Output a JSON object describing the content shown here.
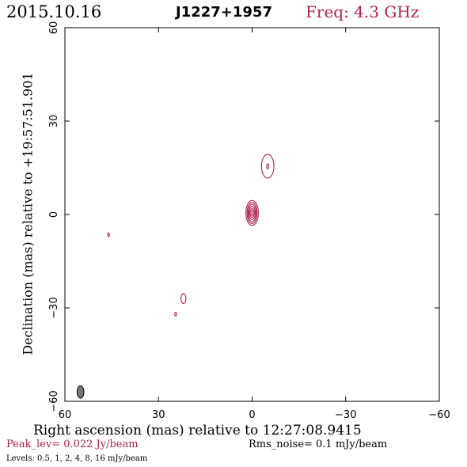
{
  "header": {
    "date": "2015.10.16",
    "source": "J1227+1957",
    "freq": "Freq: 4.3 GHz"
  },
  "colors": {
    "contour": "#b0214b",
    "beam": "#777777",
    "freq_text": "#b0214b"
  },
  "chart_data": {
    "type": "contour",
    "xlabel": "Right ascension (mas) relative to 12:27:08.9415",
    "ylabel": "Declination (mas) relative to +19:57:51.901",
    "xlim": [
      60,
      -60
    ],
    "ylim": [
      -60,
      60
    ],
    "xticks": [
      60,
      30,
      0,
      -30,
      -60
    ],
    "yticks": [
      -60,
      -30,
      0,
      30,
      60
    ],
    "xtick_labels": [
      "60",
      "30",
      "0",
      "−30",
      "−60"
    ],
    "ytick_labels": [
      "−60",
      "−30",
      "0",
      "30",
      "60"
    ],
    "grid": false,
    "peak": "Peak_lev=  0.022 Jy/beam",
    "rms": "Rms_noise=  0.1 mJy/beam",
    "levels_text": "Levels: 0.5,    1,    2,    4,    8,   16 mJy/beam",
    "levels_mjy": [
      0.5,
      1,
      2,
      4,
      8,
      16
    ],
    "beam": {
      "x": 55,
      "y": -57,
      "major": 4,
      "minor": 2.2,
      "pa": 0
    },
    "components": [
      {
        "name": "core",
        "x": 0,
        "y": 0.5,
        "rings": [
          {
            "rx": 2.0,
            "ry": 4.0
          },
          {
            "rx": 1.6,
            "ry": 3.4
          },
          {
            "rx": 1.3,
            "ry": 2.8
          },
          {
            "rx": 1.0,
            "ry": 2.1
          },
          {
            "rx": 0.7,
            "ry": 1.4
          },
          {
            "rx": 0.35,
            "ry": 0.8
          }
        ]
      },
      {
        "name": "jet",
        "x": -5,
        "y": 15.5,
        "rings": [
          {
            "rx": 2.0,
            "ry": 3.8
          },
          {
            "rx": 0.3,
            "ry": 0.8
          }
        ]
      },
      {
        "name": "blob-south",
        "x": 22,
        "y": -27,
        "rings": [
          {
            "rx": 0.8,
            "ry": 1.6
          }
        ]
      },
      {
        "name": "blob-south-small",
        "x": 24.5,
        "y": -32,
        "rings": [
          {
            "rx": 0.3,
            "ry": 0.6
          }
        ]
      },
      {
        "name": "blob-west",
        "x": 46,
        "y": -6.5,
        "rings": [
          {
            "rx": 0.25,
            "ry": 0.6
          }
        ]
      }
    ]
  }
}
